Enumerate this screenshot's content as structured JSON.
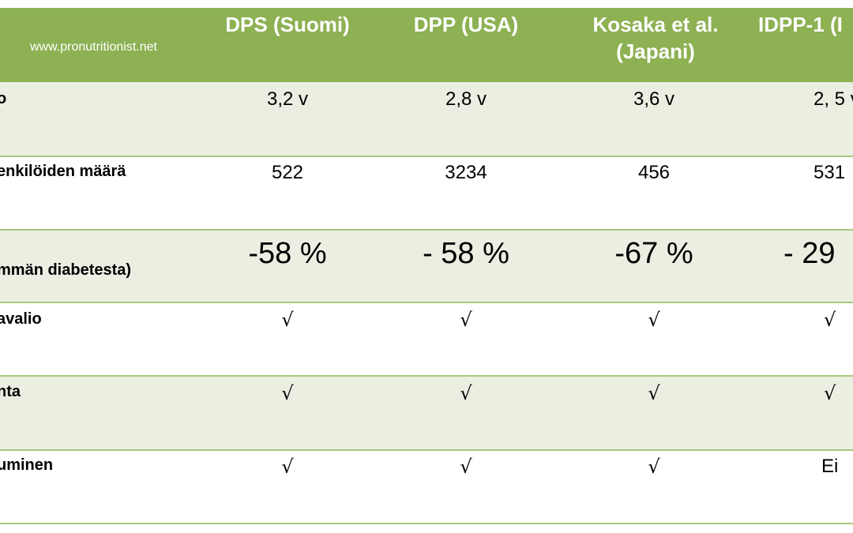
{
  "watermark": "www.pronutritionist.net",
  "columns": [
    {
      "line1": "DPS (Suomi)",
      "line2": ""
    },
    {
      "line1": "DPP (USA)",
      "line2": ""
    },
    {
      "line1": "Kosaka et al.",
      "line2": "(Japani)"
    },
    {
      "line1": "IDPP-1 (I",
      "line2": ""
    }
  ],
  "rows": [
    {
      "label": "o",
      "values": [
        "3,2 v",
        "2,8 v",
        "3,6 v",
        "2, 5 v"
      ]
    },
    {
      "label": "enkilöiden määrä",
      "values": [
        "522",
        "3234",
        "456",
        "531"
      ]
    },
    {
      "label": "mmän diabetesta)",
      "values": [
        "-58 %",
        "- 58 %",
        "-67 %",
        "- 29"
      ]
    },
    {
      "label": "avalio",
      "values": [
        "√",
        "√",
        "√",
        "√"
      ]
    },
    {
      "label": "nta",
      "values": [
        "√",
        "√",
        "√",
        "√"
      ]
    },
    {
      "label": "uminen",
      "values": [
        "√",
        "√",
        "√",
        "Ei"
      ]
    }
  ]
}
